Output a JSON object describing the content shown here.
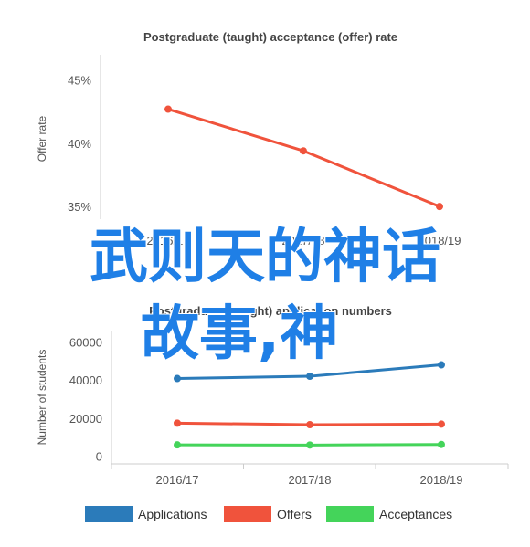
{
  "chart_data": [
    {
      "type": "line",
      "title": "Postgraduate (taught) acceptance (offer) rate",
      "xlabel": "",
      "ylabel": "Offer rate",
      "categories": [
        "2016/17",
        "2017/18",
        "2018/19"
      ],
      "series": [
        {
          "values": [
            42.7,
            39.4,
            35.0
          ],
          "color": "#f0533c"
        }
      ],
      "ylim": [
        34,
        47
      ],
      "yticks": [
        "35%",
        "40%",
        "45%"
      ],
      "ytick_values": [
        35,
        40,
        45
      ],
      "grid": false,
      "legend": "none"
    },
    {
      "type": "line",
      "title": "Postgraduate (taught) application numbers",
      "xlabel": "",
      "ylabel": "Number of students",
      "categories": [
        "2016/17",
        "2017/18",
        "2018/19"
      ],
      "series": [
        {
          "name": "Applications",
          "values": [
            40800,
            42000,
            48000
          ],
          "color": "#2b7bba"
        },
        {
          "name": "Offers",
          "values": [
            17400,
            16600,
            16900
          ],
          "color": "#f0533c"
        },
        {
          "name": "Acceptances",
          "values": [
            6000,
            5900,
            6200
          ],
          "color": "#44d45a"
        }
      ],
      "ylim": [
        -4000,
        66000
      ],
      "yticks": [
        "0",
        "20000",
        "40000",
        "60000"
      ],
      "ytick_values": [
        0,
        20000,
        40000,
        60000
      ],
      "grid": false,
      "legend": "bottom"
    }
  ],
  "overlay": {
    "line1": "武则天的神话",
    "line2": "故事,神",
    "color": "#1f7fe6"
  }
}
